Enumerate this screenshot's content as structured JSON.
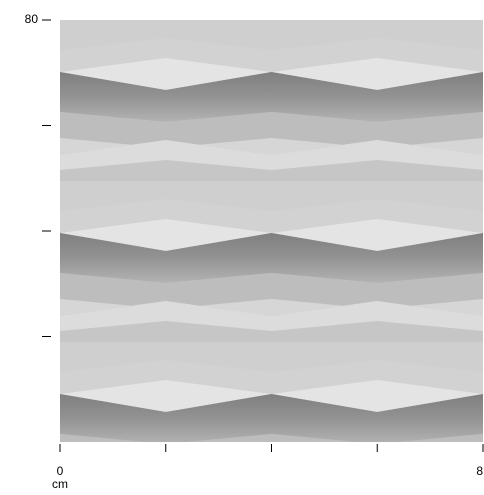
{
  "chart_data": {
    "type": "image",
    "x_label": "cm",
    "xlim": [
      0,
      8
    ],
    "ylim": [
      0,
      80
    ],
    "xticks": [
      0,
      8
    ],
    "xticks_unlabeled": [
      2,
      4,
      6
    ],
    "yticks": [
      80
    ],
    "yticks_unlabeled": [
      60,
      40,
      20
    ]
  }
}
